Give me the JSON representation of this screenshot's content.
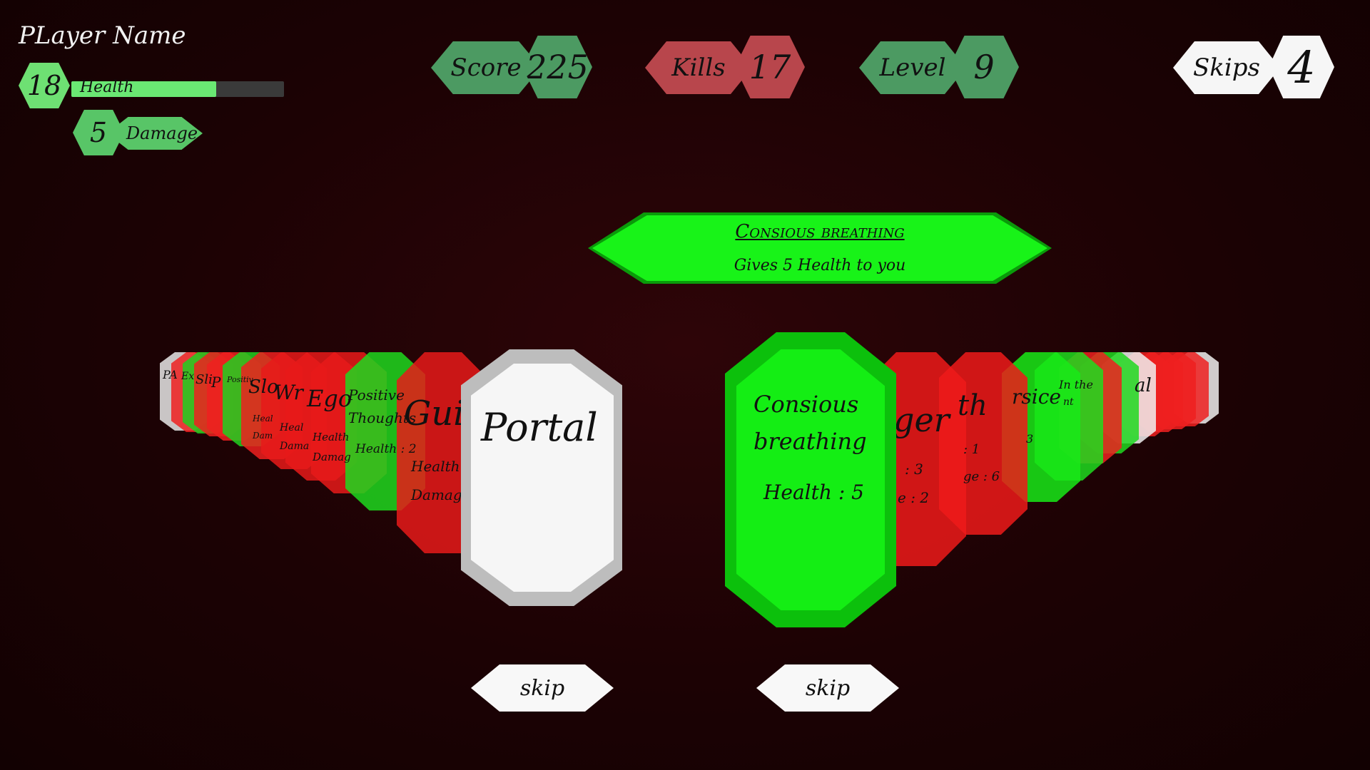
{
  "player": {
    "name": "PLayer Name",
    "health_value": "18",
    "health_label": "Health",
    "health_fraction": 0.68,
    "damage_value": "5",
    "damage_label": "Damage"
  },
  "hud": {
    "score_label": "Score",
    "score_value": "225",
    "kills_label": "Kills",
    "kills_value": "17",
    "level_label": "Level",
    "level_value": "9",
    "skips_label": "Skips",
    "skips_value": "4"
  },
  "tooltip": {
    "title": "Consious breathing",
    "description": "Gives 5 Health to you"
  },
  "left_deck": {
    "top_card": {
      "title": "Portal"
    },
    "visible": [
      {
        "title": "Guilt",
        "line1": "Health :",
        "line2": "Damage"
      },
      {
        "title": "Positive",
        "title2": "Thoughts",
        "line1": "Health : 2"
      },
      {
        "title": "Ego",
        "line1": "Health",
        "line2": "Damag"
      },
      {
        "title": "Wr",
        "line1": "Heal",
        "line2": "Dama"
      },
      {
        "title": "Slo",
        "line1": "Heal",
        "line2": "Dam"
      }
    ],
    "tiny": [
      "PA",
      "Ex",
      "Sli",
      "P",
      "Positiv"
    ]
  },
  "right_deck": {
    "top_card": {
      "title": "Consious",
      "title2": "breathing",
      "line1": "Health : 5"
    },
    "visible": [
      {
        "title": "ger",
        "line1": ": 3",
        "line2": "e : 2"
      },
      {
        "title": "th",
        "line1": ": 1",
        "line2": "ge : 6"
      },
      {
        "title": "rsice",
        "line1": "3"
      },
      {
        "title": "In the",
        "title2": "nt"
      },
      {
        "title": "al"
      }
    ]
  },
  "buttons": {
    "skip_left": "skip",
    "skip_right": "skip"
  },
  "colors": {
    "hud_green": "#4c9a62",
    "hud_red": "#b8464c",
    "card_green": "#14ee14",
    "card_red": "#ee1a1a",
    "card_white": "#f4f4f4"
  }
}
